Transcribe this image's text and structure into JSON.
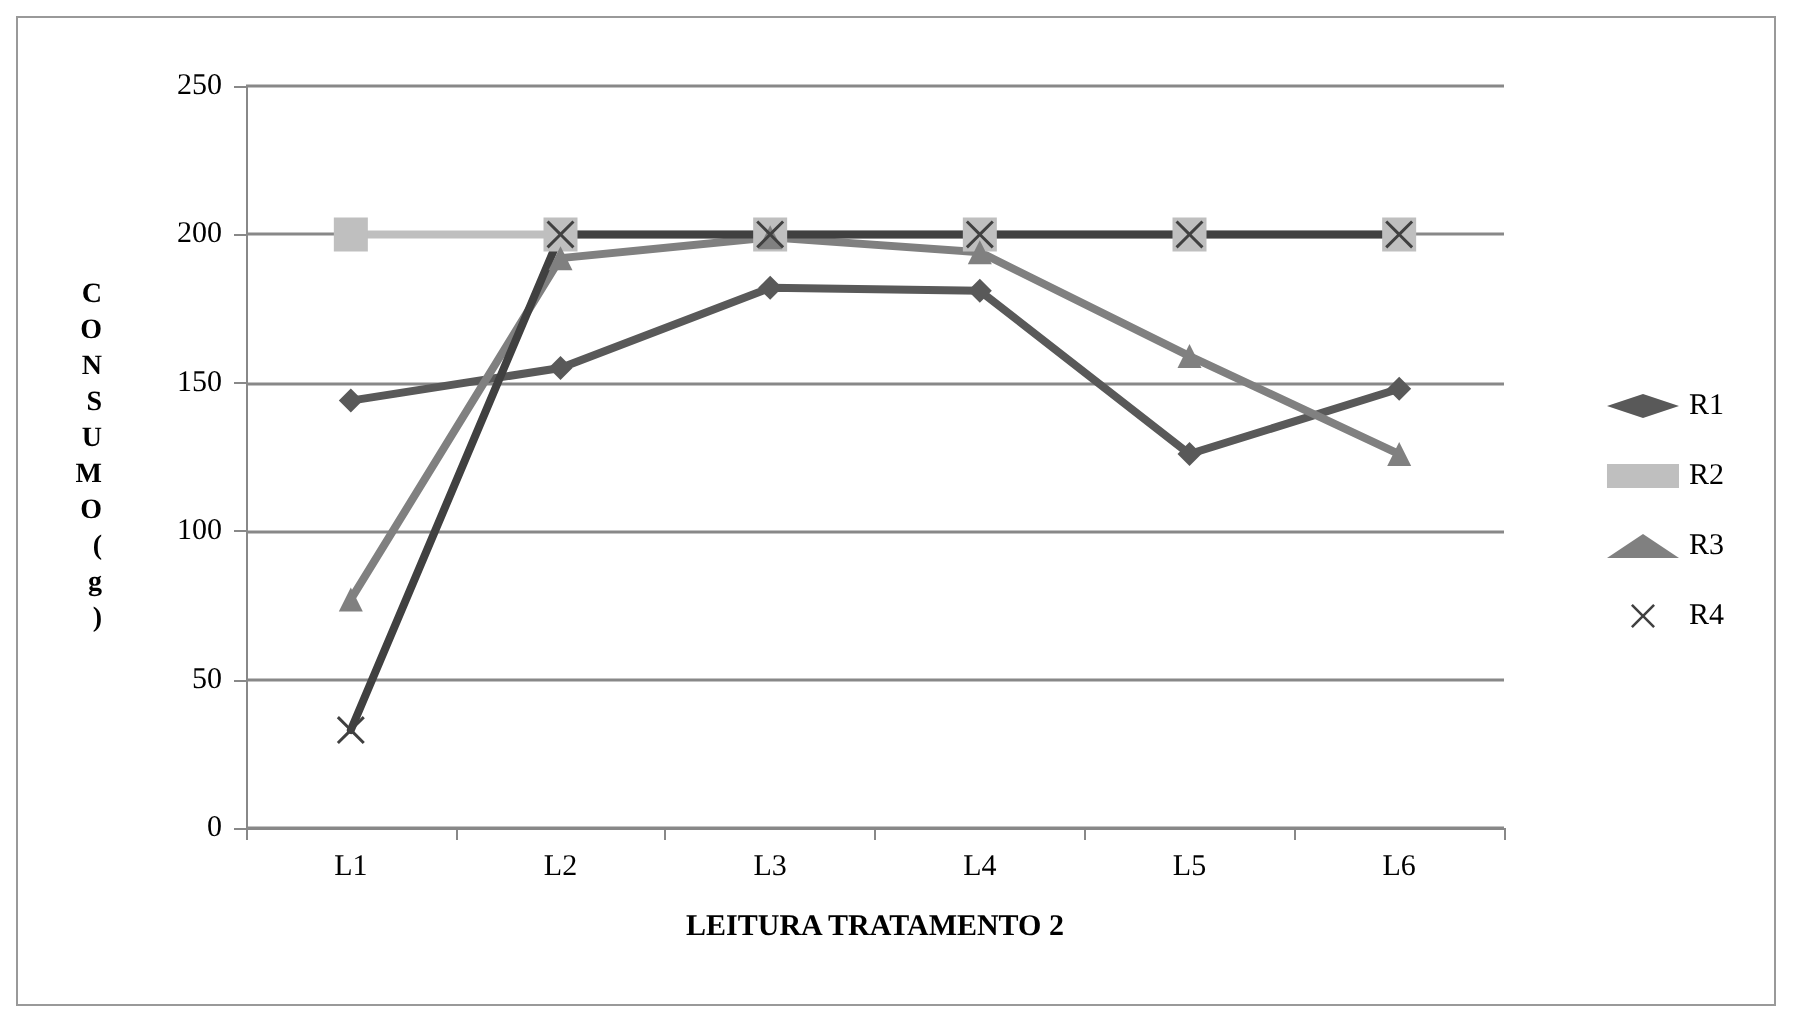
{
  "chart_data": {
    "type": "line",
    "xlabel": "LEITURA TRATAMENTO 2",
    "ylabel": "CONSUMO (g)",
    "categories": [
      "L1",
      "L2",
      "L3",
      "L4",
      "L5",
      "L6"
    ],
    "series": [
      {
        "name": "R1",
        "color": "#595959",
        "marker": "diamond",
        "values": [
          144,
          155,
          182,
          181,
          126,
          148
        ]
      },
      {
        "name": "R2",
        "color": "#bfbfbf",
        "marker": "square",
        "values": [
          200,
          200,
          200,
          200,
          200,
          200
        ]
      },
      {
        "name": "R3",
        "color": "#808080",
        "marker": "triangle",
        "values": [
          77,
          192,
          199,
          194,
          159,
          126
        ]
      },
      {
        "name": "R4",
        "color": "#404040",
        "marker": "cross",
        "values": [
          33,
          200,
          200,
          200,
          200,
          200
        ]
      }
    ],
    "ylim": [
      0,
      250
    ],
    "yticks": [
      0,
      50,
      100,
      150,
      200,
      250
    ],
    "grid": "y",
    "legend": "right",
    "line_style": "solid"
  }
}
